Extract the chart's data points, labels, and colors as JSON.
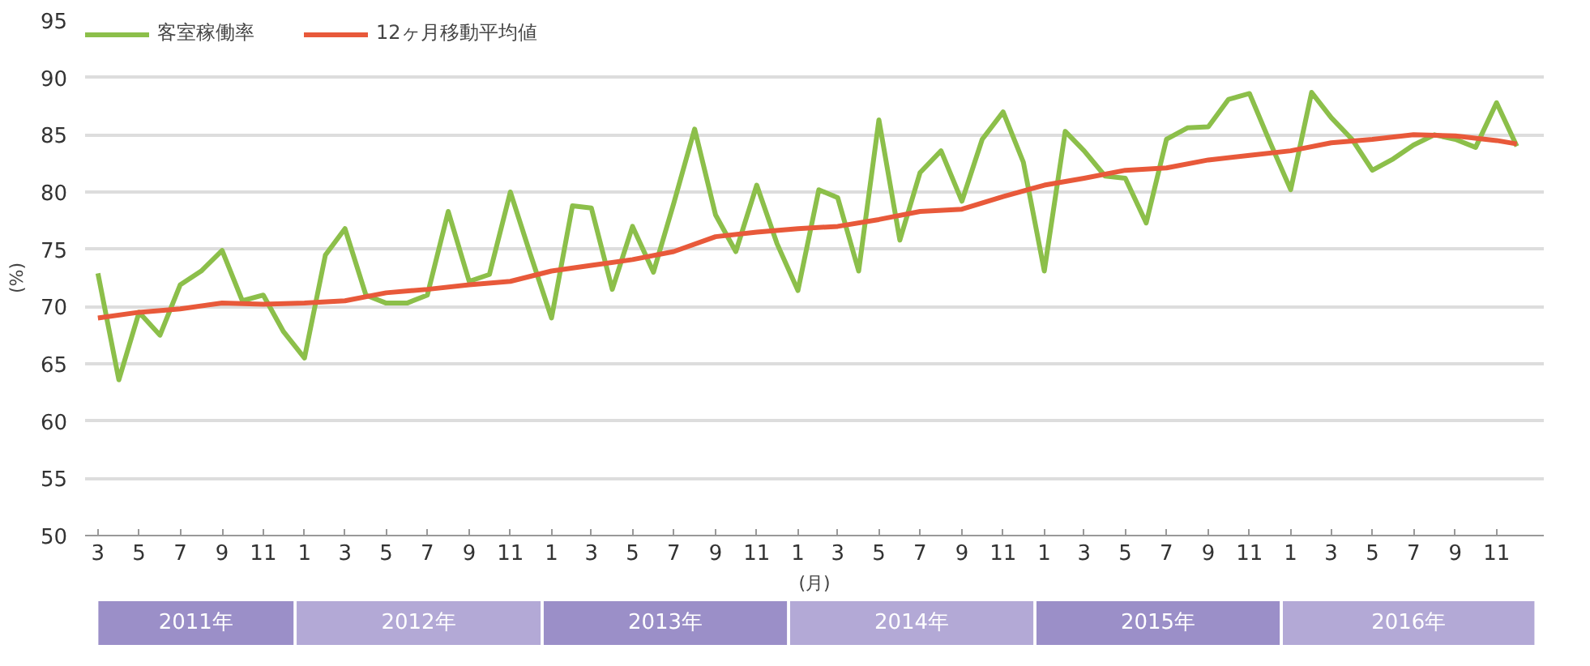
{
  "chart_data": {
    "type": "line",
    "xlabel": "(月)",
    "ylabel": "(%)",
    "x": [
      "2011-03",
      "2011-04",
      "2011-05",
      "2011-06",
      "2011-07",
      "2011-08",
      "2011-09",
      "2011-10",
      "2011-11",
      "2011-12",
      "2012-01",
      "2012-02",
      "2012-03",
      "2012-04",
      "2012-05",
      "2012-06",
      "2012-07",
      "2012-08",
      "2012-09",
      "2012-10",
      "2012-11",
      "2012-12",
      "2013-01",
      "2013-02",
      "2013-03",
      "2013-04",
      "2013-05",
      "2013-06",
      "2013-07",
      "2013-08",
      "2013-09",
      "2013-10",
      "2013-11",
      "2013-12",
      "2014-01",
      "2014-02",
      "2014-03",
      "2014-04",
      "2014-05",
      "2014-06",
      "2014-07",
      "2014-08",
      "2014-09",
      "2014-10",
      "2014-11",
      "2014-12",
      "2015-01",
      "2015-02",
      "2015-03",
      "2015-04",
      "2015-05",
      "2015-06",
      "2015-07",
      "2015-08",
      "2015-09",
      "2015-10",
      "2015-11",
      "2015-12",
      "2016-01",
      "2016-02",
      "2016-03",
      "2016-04",
      "2016-05",
      "2016-06",
      "2016-07",
      "2016-08",
      "2016-09",
      "2016-10",
      "2016-11",
      "2016-12"
    ],
    "series": [
      {
        "name": "客室稼働率",
        "color": "#8cbf4a",
        "values": [
          72.9,
          63.6,
          69.5,
          67.5,
          71.9,
          73.1,
          74.9,
          70.5,
          71,
          67.8,
          65.5,
          74.5,
          76.8,
          71,
          70.3,
          70.3,
          71,
          78.3,
          72.2,
          72.8,
          80,
          74.5,
          69,
          78.8,
          78.6,
          71.5,
          77,
          73,
          79,
          85.5,
          78,
          74.8,
          80.6,
          75.5,
          71.4,
          80.2,
          79.5,
          73.1,
          86.3,
          75.8,
          81.7,
          83.6,
          79.2,
          84.6,
          87,
          82.6,
          73.1,
          85.3,
          83.6,
          81.4,
          81.2,
          77.3,
          84.6,
          85.6,
          85.7,
          88.1,
          88.6,
          84.4,
          80.2,
          88.7,
          86.5,
          84.6,
          81.9,
          82.9,
          84.1,
          85,
          84.6,
          83.9,
          87.8,
          84
        ]
      },
      {
        "name": "12ヶ月移動平均値",
        "color": "#e8593a",
        "x": [
          "2011-03",
          "2011-05",
          "2011-07",
          "2011-09",
          "2011-11",
          "2012-01",
          "2012-03",
          "2012-05",
          "2012-07",
          "2012-09",
          "2012-11",
          "2013-01",
          "2013-03",
          "2013-05",
          "2013-07",
          "2013-09",
          "2013-11",
          "2014-01",
          "2014-03",
          "2014-05",
          "2014-07",
          "2014-09",
          "2014-11",
          "2015-01",
          "2015-03",
          "2015-05",
          "2015-07",
          "2015-09",
          "2015-11",
          "2016-01",
          "2016-03",
          "2016-05",
          "2016-07",
          "2016-09",
          "2016-11",
          "2016-12"
        ],
        "values": [
          69,
          69.5,
          69.8,
          70.3,
          70.2,
          70.3,
          70.5,
          71.2,
          71.5,
          71.9,
          72.2,
          73.1,
          73.6,
          74.1,
          74.8,
          76.1,
          76.5,
          76.8,
          77,
          77.6,
          78.3,
          78.5,
          79.6,
          80.6,
          81.2,
          81.9,
          82.1,
          82.8,
          83.2,
          83.6,
          84.3,
          84.6,
          85,
          84.9,
          84.5,
          84.2
        ]
      }
    ],
    "ylim": [
      50,
      95
    ],
    "yticks": [
      50,
      55,
      60,
      65,
      70,
      75,
      80,
      85,
      90,
      95
    ],
    "xlim": [
      "2011-02-10",
      "2017-01-10"
    ],
    "xticks": [
      {
        "value": "2011-03",
        "label": "3"
      },
      {
        "value": "2011-05",
        "label": "5"
      },
      {
        "value": "2011-07",
        "label": "7"
      },
      {
        "value": "2011-09",
        "label": "9"
      },
      {
        "value": "2011-11",
        "label": "11"
      },
      {
        "value": "2012-01",
        "label": "1"
      },
      {
        "value": "2012-03",
        "label": "3"
      },
      {
        "value": "2012-05",
        "label": "5"
      },
      {
        "value": "2012-07",
        "label": "7"
      },
      {
        "value": "2012-09",
        "label": "9"
      },
      {
        "value": "2012-11",
        "label": "11"
      },
      {
        "value": "2013-01",
        "label": "1"
      },
      {
        "value": "2013-03",
        "label": "3"
      },
      {
        "value": "2013-05",
        "label": "5"
      },
      {
        "value": "2013-07",
        "label": "7"
      },
      {
        "value": "2013-09",
        "label": "9"
      },
      {
        "value": "2013-11",
        "label": "11"
      },
      {
        "value": "2014-01",
        "label": "1"
      },
      {
        "value": "2014-03",
        "label": "3"
      },
      {
        "value": "2014-05",
        "label": "5"
      },
      {
        "value": "2014-07",
        "label": "7"
      },
      {
        "value": "2014-09",
        "label": "9"
      },
      {
        "value": "2014-11",
        "label": "11"
      },
      {
        "value": "2015-01",
        "label": "1"
      },
      {
        "value": "2015-03",
        "label": "3"
      },
      {
        "value": "2015-05",
        "label": "5"
      },
      {
        "value": "2015-07",
        "label": "7"
      },
      {
        "value": "2015-09",
        "label": "9"
      },
      {
        "value": "2015-11",
        "label": "11"
      },
      {
        "value": "2016-01",
        "label": "1"
      },
      {
        "value": "2016-03",
        "label": "3"
      },
      {
        "value": "2016-05",
        "label": "5"
      },
      {
        "value": "2016-07",
        "label": "7"
      },
      {
        "value": "2016-09",
        "label": "9"
      },
      {
        "value": "2016-11",
        "label": "11"
      }
    ],
    "annotations": [
      "2011年",
      "2012年",
      "2013年",
      "2014年",
      "2015年",
      "2016年"
    ],
    "grid": "y",
    "legend": "top left",
    "marker": "none",
    "line_style": "solid"
  }
}
